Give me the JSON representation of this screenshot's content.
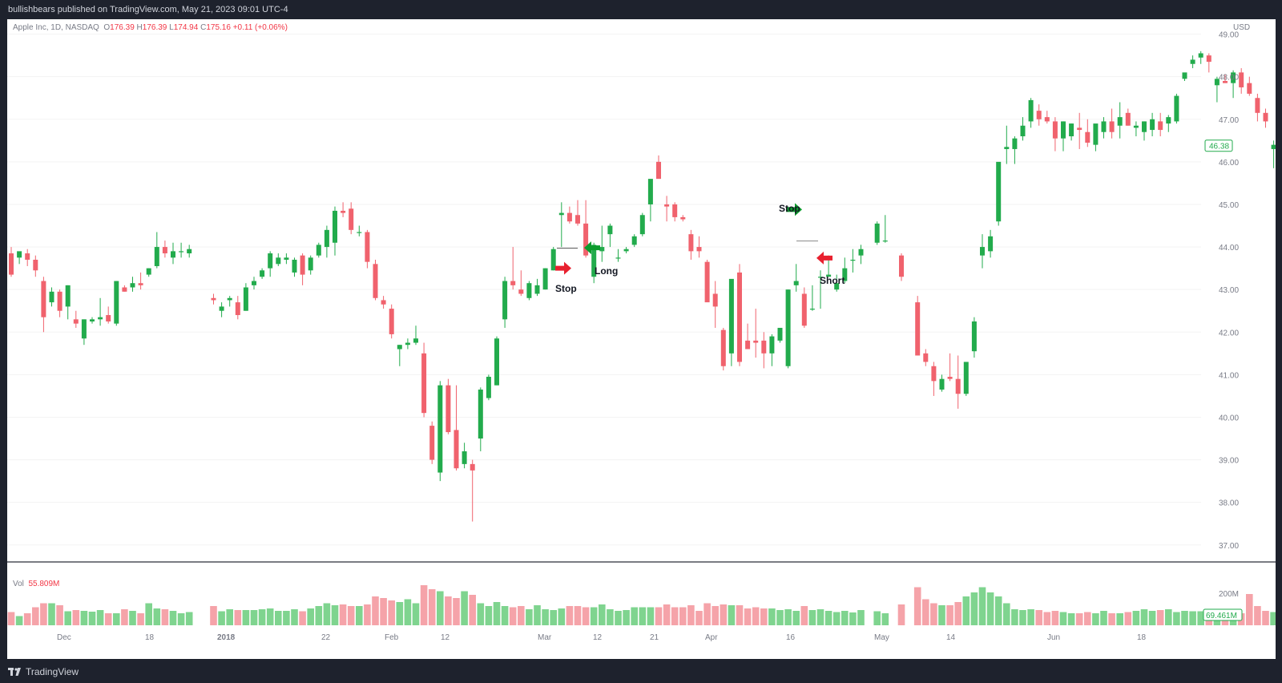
{
  "header": {
    "publisher": "bullishbears published on TradingView.com, May 21, 2023 09:01 UTC-4"
  },
  "footer": {
    "brand": "TradingView"
  },
  "legend": {
    "symbol": "Apple Inc, 1D, NASDAQ",
    "o_label": "O",
    "o": "176.39",
    "h_label": "H",
    "h": "176.39",
    "l_label": "L",
    "l": "174.94",
    "c_label": "C",
    "c": "175.16",
    "change": "+0.11 (+0.06%)"
  },
  "volume_legend": {
    "label": "Vol",
    "value": "55.809M"
  },
  "currency": "USD",
  "colors": {
    "up": "#22ab4c",
    "down": "#f0626d",
    "vol_up": "#7fd48f",
    "vol_down": "#f5a3a9",
    "annotation_green": "#0c9c2d",
    "annotation_red": "#e8212f"
  },
  "chart_data": {
    "type": "candlestick",
    "ylim": [
      36.6,
      49.35
    ],
    "y_ticks": [
      "49.00",
      "48.00",
      "47.00",
      "46.00",
      "45.00",
      "44.00",
      "43.00",
      "42.00",
      "41.00",
      "40.00",
      "39.00",
      "38.00",
      "37.00"
    ],
    "x_ticks": [
      "Dec",
      "18",
      "2018",
      "22",
      "Feb",
      "12",
      "Mar",
      "12",
      "21",
      "Apr",
      "16",
      "May",
      "14",
      "Jun",
      "18"
    ],
    "last_price": "46.38",
    "volume_tick": "200M",
    "last_volume": "69.461M",
    "annotations": [
      {
        "text": "Long",
        "direction": "left",
        "color": "green",
        "x": "Mar",
        "price": 43.98
      },
      {
        "text": "Stop",
        "direction": "right",
        "color": "red",
        "x": "Mar",
        "price": 43.5
      },
      {
        "text": "Stop",
        "direction": "right",
        "color": "green",
        "x": "Apr 16",
        "price": 44.88
      },
      {
        "text": "Short",
        "direction": "left",
        "color": "red",
        "x": "Apr 16",
        "price": 43.74
      }
    ],
    "candles": [
      [
        43.85,
        44.0,
        43.3,
        43.35,
        0.33
      ],
      [
        43.75,
        43.85,
        43.6,
        43.9,
        0.23
      ],
      [
        43.85,
        43.95,
        43.55,
        43.7,
        0.3
      ],
      [
        43.7,
        43.8,
        43.3,
        43.45,
        0.45
      ],
      [
        43.2,
        43.3,
        42.0,
        42.35,
        0.55
      ],
      [
        42.7,
        43.05,
        42.6,
        42.95,
        0.55
      ],
      [
        42.95,
        43.0,
        42.35,
        42.5,
        0.5
      ],
      [
        42.6,
        43.1,
        42.3,
        43.1,
        0.35
      ],
      [
        42.3,
        42.5,
        42.1,
        42.2,
        0.38
      ],
      [
        41.85,
        42.3,
        41.7,
        42.3,
        0.36
      ],
      [
        42.25,
        42.35,
        42.2,
        42.3,
        0.34
      ],
      [
        42.3,
        42.8,
        42.15,
        42.35,
        0.38
      ],
      [
        42.4,
        42.6,
        42.2,
        42.25,
        0.3
      ],
      [
        42.2,
        43.2,
        42.15,
        43.2,
        0.3
      ],
      [
        43.05,
        43.1,
        42.95,
        42.95,
        0.4
      ],
      [
        43.05,
        43.3,
        42.95,
        43.15,
        0.36
      ],
      [
        43.15,
        43.4,
        43.0,
        43.1,
        0.3
      ],
      [
        43.35,
        43.5,
        43.3,
        43.5,
        0.55
      ],
      [
        43.55,
        44.35,
        43.5,
        44.0,
        0.42
      ],
      [
        44.0,
        44.15,
        43.75,
        43.85,
        0.4
      ],
      [
        43.75,
        44.1,
        43.6,
        43.9,
        0.36
      ],
      [
        43.9,
        44.1,
        43.75,
        43.9,
        0.3
      ],
      [
        43.85,
        44.05,
        43.75,
        43.95,
        0.33
      ],
      null,
      null,
      [
        42.8,
        42.9,
        42.65,
        42.75,
        0.48
      ],
      [
        42.5,
        42.7,
        42.35,
        42.6,
        0.35
      ],
      [
        42.75,
        42.85,
        42.6,
        42.8,
        0.4
      ],
      [
        42.7,
        42.85,
        42.3,
        42.4,
        0.38
      ],
      [
        42.5,
        43.15,
        42.5,
        43.05,
        0.38
      ],
      [
        43.1,
        43.3,
        43.0,
        43.2,
        0.38
      ],
      [
        43.3,
        43.5,
        43.25,
        43.45,
        0.4
      ],
      [
        43.5,
        43.9,
        43.3,
        43.85,
        0.42
      ],
      [
        43.6,
        43.85,
        43.55,
        43.75,
        0.36
      ],
      [
        43.7,
        43.85,
        43.6,
        43.75,
        0.36
      ],
      [
        43.4,
        43.75,
        43.3,
        43.7,
        0.4
      ],
      [
        43.8,
        43.85,
        43.1,
        43.35,
        0.35
      ],
      [
        43.45,
        43.8,
        43.35,
        43.75,
        0.42
      ],
      [
        43.8,
        44.1,
        43.75,
        44.05,
        0.48
      ],
      [
        44.0,
        44.5,
        43.75,
        44.4,
        0.55
      ],
      [
        44.1,
        44.95,
        43.8,
        44.85,
        0.5
      ],
      [
        44.85,
        45.05,
        44.7,
        44.8,
        0.52
      ],
      [
        44.9,
        45.05,
        44.3,
        44.4,
        0.48
      ],
      [
        44.35,
        44.5,
        44.25,
        44.35,
        0.48
      ],
      [
        44.35,
        44.4,
        43.5,
        43.65,
        0.52
      ],
      [
        43.6,
        43.7,
        42.75,
        42.8,
        0.72
      ],
      [
        42.75,
        42.85,
        42.55,
        42.65,
        0.68
      ],
      [
        42.55,
        42.65,
        41.85,
        41.95,
        0.62
      ],
      [
        41.6,
        41.7,
        41.2,
        41.7,
        0.58
      ],
      [
        41.7,
        41.85,
        41.6,
        41.75,
        0.65
      ],
      [
        41.75,
        42.15,
        41.7,
        41.85,
        0.55
      ],
      [
        41.5,
        41.75,
        40.0,
        40.1,
        1.0
      ],
      [
        39.8,
        39.9,
        38.9,
        39.0,
        0.9
      ],
      [
        38.7,
        40.85,
        38.5,
        40.75,
        0.85
      ],
      [
        40.75,
        40.9,
        39.6,
        39.65,
        0.72
      ],
      [
        39.7,
        40.75,
        38.75,
        38.8,
        0.68
      ],
      [
        38.9,
        39.4,
        38.8,
        39.2,
        0.85
      ],
      [
        38.9,
        39.0,
        37.55,
        38.75,
        0.76
      ],
      [
        39.5,
        40.7,
        39.2,
        40.65,
        0.55
      ],
      [
        40.45,
        41.0,
        40.4,
        40.95,
        0.48
      ],
      [
        40.75,
        41.9,
        40.75,
        41.85,
        0.58
      ],
      [
        42.3,
        43.3,
        42.1,
        43.2,
        0.48
      ],
      [
        43.2,
        44.0,
        43.0,
        43.1,
        0.45
      ],
      [
        43.0,
        43.45,
        42.85,
        42.9,
        0.48
      ],
      [
        42.8,
        43.2,
        42.75,
        43.15,
        0.4
      ],
      [
        42.9,
        43.25,
        42.85,
        43.1,
        0.5
      ],
      [
        43.0,
        43.5,
        43.0,
        43.5,
        0.4
      ],
      [
        43.45,
        44.0,
        43.45,
        43.95,
        0.38
      ],
      [
        44.75,
        45.05,
        44.0,
        44.8,
        0.42
      ],
      [
        44.8,
        44.95,
        44.55,
        44.6,
        0.48
      ],
      [
        44.75,
        45.1,
        44.5,
        44.55,
        0.48
      ],
      [
        44.55,
        45.1,
        43.75,
        43.8,
        0.45
      ],
      [
        43.3,
        44.1,
        43.15,
        44.05,
        0.45
      ],
      [
        43.9,
        44.5,
        43.65,
        44.0,
        0.52
      ],
      [
        44.3,
        44.55,
        44.0,
        44.5,
        0.4
      ],
      [
        43.75,
        43.95,
        43.65,
        43.75,
        0.36
      ],
      [
        43.9,
        44.0,
        43.85,
        43.95,
        0.38
      ],
      [
        44.05,
        44.3,
        44.0,
        44.25,
        0.45
      ],
      [
        44.3,
        44.8,
        44.25,
        44.75,
        0.45
      ],
      [
        45.0,
        45.5,
        44.6,
        45.6,
        0.45
      ],
      [
        46.0,
        46.15,
        45.65,
        45.6,
        0.45
      ],
      [
        45.0,
        45.2,
        44.6,
        44.95,
        0.52
      ],
      [
        45.0,
        45.05,
        44.6,
        44.7,
        0.45
      ],
      [
        44.7,
        44.75,
        44.6,
        44.65,
        0.45
      ],
      [
        44.3,
        44.4,
        43.7,
        43.9,
        0.5
      ],
      [
        44.0,
        44.25,
        43.75,
        43.9,
        0.36
      ],
      [
        43.65,
        43.7,
        42.9,
        42.7,
        0.55
      ],
      [
        42.9,
        43.2,
        42.1,
        42.6,
        0.48
      ],
      [
        42.05,
        42.1,
        41.1,
        41.2,
        0.52
      ],
      [
        41.5,
        43.2,
        41.2,
        43.25,
        0.5
      ],
      [
        43.4,
        43.6,
        41.2,
        41.3,
        0.5
      ],
      [
        41.8,
        42.2,
        41.6,
        41.6,
        0.42
      ],
      [
        41.8,
        42.55,
        41.4,
        41.75,
        0.45
      ],
      [
        41.8,
        42.0,
        41.15,
        41.5,
        0.42
      ],
      [
        41.5,
        41.95,
        41.2,
        41.9,
        0.42
      ],
      [
        41.8,
        42.1,
        41.75,
        42.1,
        0.38
      ],
      [
        41.2,
        43.0,
        41.15,
        43.0,
        0.4
      ],
      [
        43.1,
        43.6,
        42.95,
        43.2,
        0.36
      ],
      [
        42.9,
        43.05,
        42.1,
        42.15,
        0.48
      ],
      [
        42.55,
        43.1,
        42.5,
        42.55,
        0.38
      ],
      [
        43.3,
        43.45,
        42.55,
        43.3,
        0.4
      ],
      [
        43.3,
        43.8,
        43.3,
        43.35,
        0.36
      ],
      [
        43.0,
        43.35,
        42.95,
        43.15,
        0.33
      ],
      [
        43.2,
        43.75,
        43.15,
        43.5,
        0.36
      ],
      [
        43.7,
        43.95,
        43.4,
        43.7,
        0.32
      ],
      [
        43.8,
        44.05,
        43.6,
        43.95,
        0.38
      ],
      null,
      [
        44.1,
        44.6,
        44.05,
        44.55,
        0.35
      ],
      [
        44.15,
        44.75,
        44.1,
        44.15,
        0.3
      ],
      null,
      [
        43.8,
        43.85,
        43.2,
        43.3,
        0.52
      ],
      null,
      [
        42.7,
        42.85,
        41.45,
        41.45,
        0.95
      ],
      [
        41.5,
        41.6,
        41.2,
        41.3,
        0.65
      ],
      [
        41.2,
        41.3,
        40.5,
        40.85,
        0.55
      ],
      [
        40.65,
        41.0,
        40.6,
        40.9,
        0.5
      ],
      [
        40.95,
        41.5,
        40.85,
        40.9,
        0.5
      ],
      [
        40.9,
        41.45,
        40.2,
        40.55,
        0.58
      ],
      [
        40.55,
        41.0,
        40.5,
        41.3,
        0.72
      ],
      [
        41.55,
        42.35,
        41.4,
        42.25,
        0.82
      ],
      [
        43.8,
        44.3,
        43.5,
        44.0,
        0.95
      ],
      [
        43.9,
        44.4,
        43.75,
        44.25,
        0.82
      ],
      [
        44.6,
        45.9,
        44.5,
        46.0,
        0.72
      ],
      [
        46.3,
        46.85,
        45.95,
        46.35,
        0.55
      ],
      [
        46.3,
        46.6,
        45.95,
        46.55,
        0.4
      ],
      [
        46.6,
        47.05,
        46.5,
        46.85,
        0.38
      ],
      [
        46.95,
        47.5,
        46.8,
        47.45,
        0.4
      ],
      [
        47.2,
        47.35,
        46.85,
        47.0,
        0.38
      ],
      [
        47.05,
        47.2,
        46.9,
        46.95,
        0.33
      ],
      [
        46.95,
        47.05,
        46.25,
        46.55,
        0.36
      ],
      [
        46.55,
        46.95,
        46.25,
        46.95,
        0.33
      ],
      [
        46.6,
        46.9,
        46.5,
        46.9,
        0.3
      ],
      [
        46.8,
        47.15,
        46.3,
        46.75,
        0.3
      ],
      [
        46.7,
        47.0,
        46.35,
        46.45,
        0.33
      ],
      [
        46.4,
        46.75,
        46.25,
        46.9,
        0.3
      ],
      [
        46.7,
        47.05,
        46.55,
        46.95,
        0.36
      ],
      [
        46.95,
        47.25,
        46.55,
        46.7,
        0.3
      ],
      [
        46.85,
        47.4,
        46.55,
        47.05,
        0.3
      ],
      [
        47.15,
        47.25,
        46.85,
        46.85,
        0.33
      ],
      [
        46.8,
        46.95,
        46.6,
        46.85,
        0.36
      ],
      [
        46.7,
        46.95,
        46.5,
        46.95,
        0.4
      ],
      [
        46.75,
        47.15,
        46.6,
        47.0,
        0.36
      ],
      [
        46.95,
        47.15,
        46.6,
        46.75,
        0.38
      ],
      [
        46.9,
        47.1,
        46.7,
        47.05,
        0.4
      ],
      [
        46.95,
        47.6,
        46.9,
        47.55,
        0.33
      ],
      [
        47.95,
        48.05,
        47.9,
        48.1,
        0.36
      ],
      [
        48.3,
        48.5,
        48.2,
        48.4,
        0.35
      ],
      [
        48.45,
        48.6,
        48.3,
        48.55,
        0.35
      ],
      [
        48.5,
        48.55,
        48.1,
        48.35,
        0.33
      ],
      [
        47.8,
        48.0,
        47.4,
        47.95,
        0.3
      ],
      [
        47.9,
        48.05,
        47.85,
        47.85,
        0.28
      ],
      [
        47.85,
        48.15,
        47.5,
        48.1,
        0.35
      ],
      [
        48.1,
        48.2,
        47.6,
        47.75,
        0.3
      ],
      [
        47.85,
        48.0,
        47.55,
        47.6,
        0.78
      ],
      [
        47.5,
        47.6,
        46.95,
        47.15,
        0.48
      ],
      [
        47.15,
        47.25,
        46.8,
        46.95,
        0.36
      ],
      [
        46.3,
        46.5,
        45.85,
        46.4,
        0.33
      ],
      [
        46.5,
        46.7,
        46.25,
        46.65,
        0.36
      ],
      [
        46.8,
        47.1,
        46.3,
        46.4,
        0.42
      ],
      [
        46.4,
        46.55,
        45.95,
        46.2,
        0.38
      ],
      [
        45.85,
        46.0,
        45.2,
        45.55,
        0.38
      ],
      [
        45.8,
        46.15,
        45.75,
        46.15,
        0.4
      ],
      [
        46.3,
        46.85,
        45.85,
        46.0,
        0.42
      ],
      [
        46.0,
        46.6,
        45.9,
        46.38,
        0.42
      ]
    ]
  }
}
